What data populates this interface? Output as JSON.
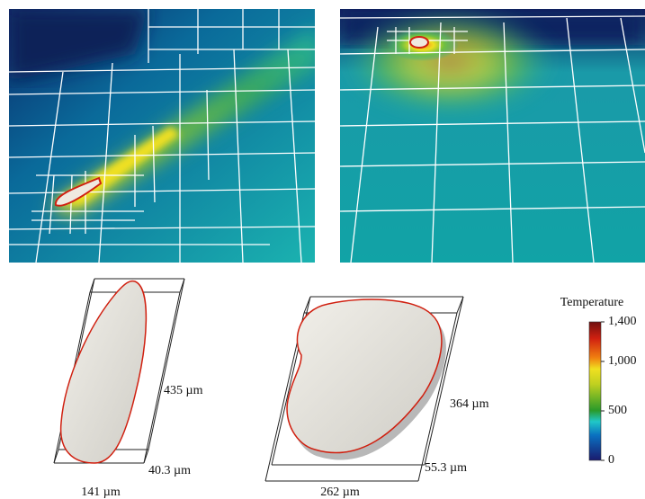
{
  "colorbar": {
    "title": "Temperature",
    "lim": [
      0,
      1400
    ],
    "ticks": [
      0,
      500,
      {
        "value": 1000,
        "label": "1,000"
      },
      {
        "value": 1400,
        "label": "1,400"
      }
    ]
  },
  "melt_pools": [
    {
      "height": "435 µm",
      "depth": "40.3 µm",
      "width": "141 µm"
    },
    {
      "height": "364 µm",
      "depth": "55.3 µm",
      "width": "262 µm"
    }
  ]
}
